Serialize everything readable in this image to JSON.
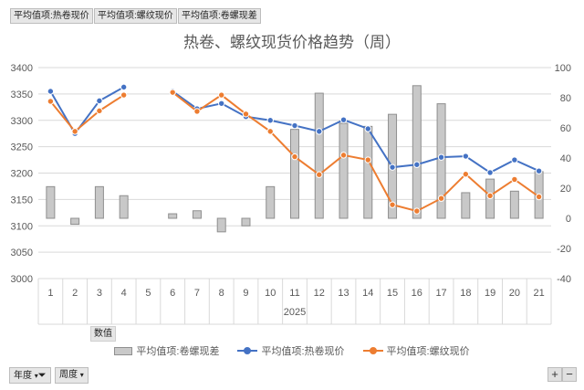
{
  "filters": {
    "top": [
      "平均值项:热卷现价",
      "平均值项:螺纹现价",
      "平均值项:卷螺现差"
    ],
    "values_label": "数值",
    "axis_fields": [
      "年度",
      "周度"
    ]
  },
  "chart_data": {
    "type": "bar+line",
    "title": "热卷、螺纹现货价格趋势（周）",
    "categories": [
      "1",
      "2",
      "3",
      "4",
      "5",
      "6",
      "7",
      "8",
      "9",
      "10",
      "11",
      "12",
      "13",
      "14",
      "15",
      "16",
      "17",
      "18",
      "19",
      "20",
      "21"
    ],
    "category_group": "2025",
    "ylim_left": [
      3000,
      3400
    ],
    "yticks_left": [
      "3000",
      "3050",
      "3100",
      "3150",
      "3200",
      "3250",
      "3300",
      "3350",
      "3400"
    ],
    "ylim_right": [
      -40,
      100
    ],
    "yticks_right": [
      "-40",
      "-20",
      "0",
      "20",
      "40",
      "60",
      "80",
      "100"
    ],
    "grid": true,
    "legend_position": "bottom",
    "series": [
      {
        "name": "平均值项:卷螺现差",
        "type": "bar",
        "axis": "right",
        "color": "#c8c8c8",
        "values": [
          21,
          -4,
          21,
          15,
          null,
          3,
          5,
          -9,
          -5,
          21,
          59,
          83,
          63,
          61,
          69,
          88,
          76,
          17,
          26,
          18,
          31
        ]
      },
      {
        "name": "平均值项:热卷现价",
        "type": "line",
        "axis": "left",
        "color": "#4472c4",
        "values": [
          3355,
          3275,
          3337,
          3363,
          null,
          3355,
          3322,
          3332,
          3307,
          3300,
          3290,
          3279,
          3301,
          3284,
          3211,
          3216,
          3230,
          3232,
          3201,
          3225,
          3204
        ]
      },
      {
        "name": "平均值项:螺纹现价",
        "type": "line",
        "axis": "left",
        "color": "#ed7d31",
        "values": [
          3336,
          3279,
          3318,
          3348,
          null,
          3353,
          3317,
          3348,
          3312,
          3279,
          3231,
          3197,
          3234,
          3225,
          3140,
          3128,
          3152,
          3198,
          3157,
          3188,
          3155
        ]
      }
    ]
  },
  "controls": {
    "plus": "+",
    "minus": "−"
  }
}
